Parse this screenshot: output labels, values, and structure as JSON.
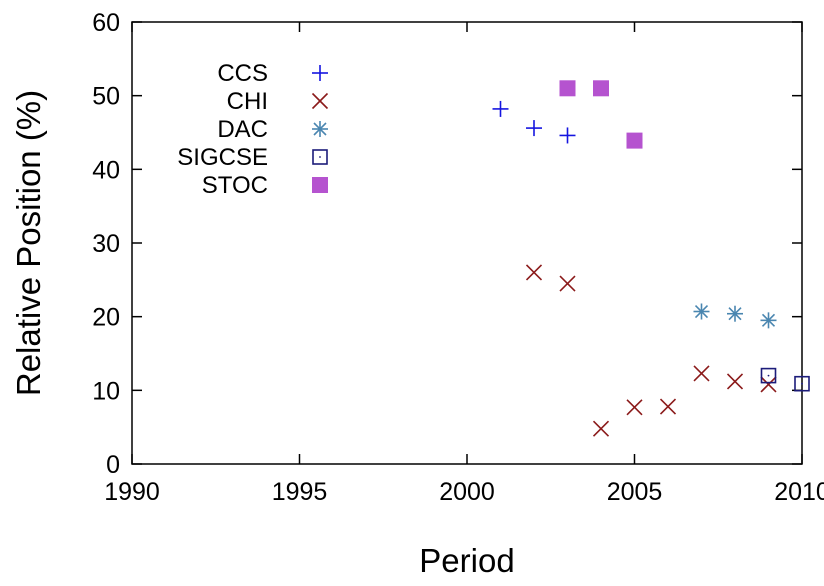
{
  "chart_data": {
    "type": "scatter",
    "title": "",
    "xlabel": "Period",
    "ylabel": "Relative Position (%)",
    "xlim": [
      1990,
      2010
    ],
    "ylim": [
      0,
      60
    ],
    "xticks": [
      1990,
      1995,
      2000,
      2005,
      2010
    ],
    "yticks": [
      0,
      10,
      20,
      30,
      40,
      50,
      60
    ],
    "grid": false,
    "legend_position": "top-left",
    "series": [
      {
        "name": "CCS",
        "marker": "plus",
        "color": "#1515e0",
        "points": [
          [
            2001,
            48.2
          ],
          [
            2002,
            45.6
          ],
          [
            2003,
            44.6
          ]
        ]
      },
      {
        "name": "CHI",
        "marker": "cross",
        "color": "#8b1a1a",
        "points": [
          [
            2002,
            26.0
          ],
          [
            2003,
            24.5
          ],
          [
            2004,
            4.8
          ],
          [
            2005,
            7.7
          ],
          [
            2006,
            7.8
          ],
          [
            2007,
            12.3
          ],
          [
            2008,
            11.2
          ],
          [
            2009,
            10.8
          ]
        ]
      },
      {
        "name": "DAC",
        "marker": "asterisk",
        "color": "#4a86b0",
        "points": [
          [
            2007,
            20.7
          ],
          [
            2008,
            20.4
          ],
          [
            2009,
            19.5
          ]
        ]
      },
      {
        "name": "SIGCSE",
        "marker": "square-open",
        "color": "#1c1c7a",
        "points": [
          [
            2009,
            12.0
          ],
          [
            2010,
            10.9
          ]
        ]
      },
      {
        "name": "STOC",
        "marker": "square-filled",
        "color": "#b553cf",
        "points": [
          [
            2003,
            51.0
          ],
          [
            2004,
            51.0
          ],
          [
            2005,
            43.9
          ]
        ]
      }
    ]
  }
}
